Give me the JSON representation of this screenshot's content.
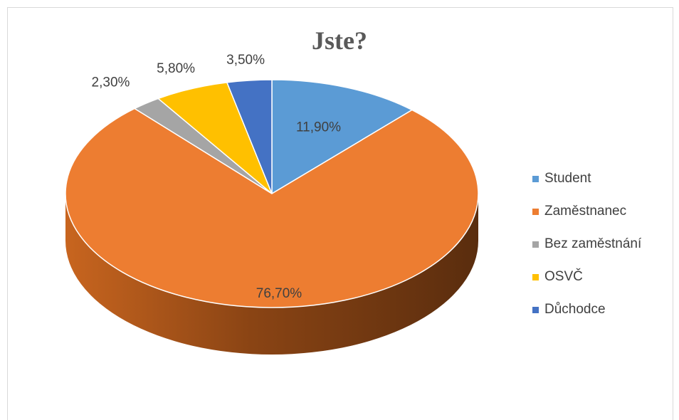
{
  "chart_data": {
    "type": "pie",
    "title": "Jste?",
    "categories": [
      "Student",
      "Zaměstnanec",
      "Bez zaměstnání",
      "OSVČ",
      "Důchodce"
    ],
    "values": [
      11.9,
      76.7,
      2.3,
      5.8,
      3.5
    ],
    "data_labels": [
      "11,90%",
      "76,70%",
      "2,30%",
      "5,80%",
      "3,50%"
    ],
    "colors": [
      "#5b9bd5",
      "#ed7d31",
      "#a5a5a5",
      "#ffc000",
      "#4472c4"
    ],
    "legend_position": "right",
    "style": "3d"
  }
}
